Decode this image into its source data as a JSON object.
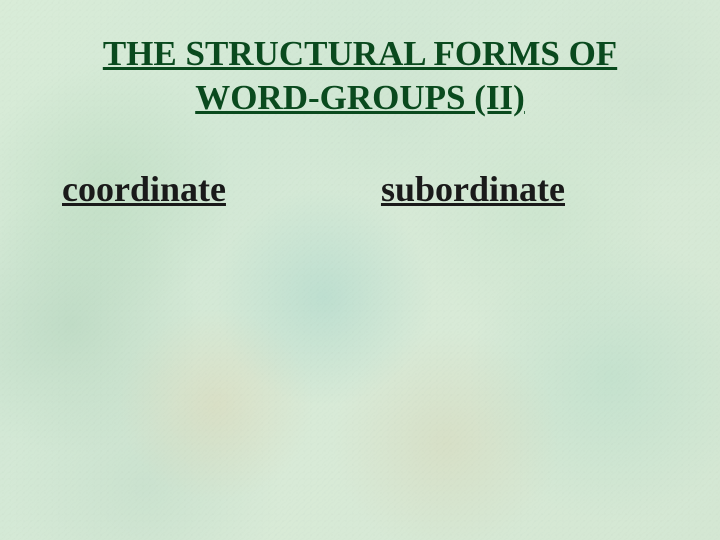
{
  "title": {
    "line1": "THE STRUCTURAL FORMS OF",
    "line2": "WORD-GROUPS (II)",
    "color": "#0a4a1e",
    "fontsize": 35
  },
  "columns": {
    "left": {
      "label": "coordinate",
      "color": "#1a1a1a",
      "fontsize": 36
    },
    "right": {
      "label": "subordinate",
      "color": "#1a1a1a",
      "fontsize": 36
    }
  },
  "background": {
    "base_color": "#d6e9d6"
  }
}
